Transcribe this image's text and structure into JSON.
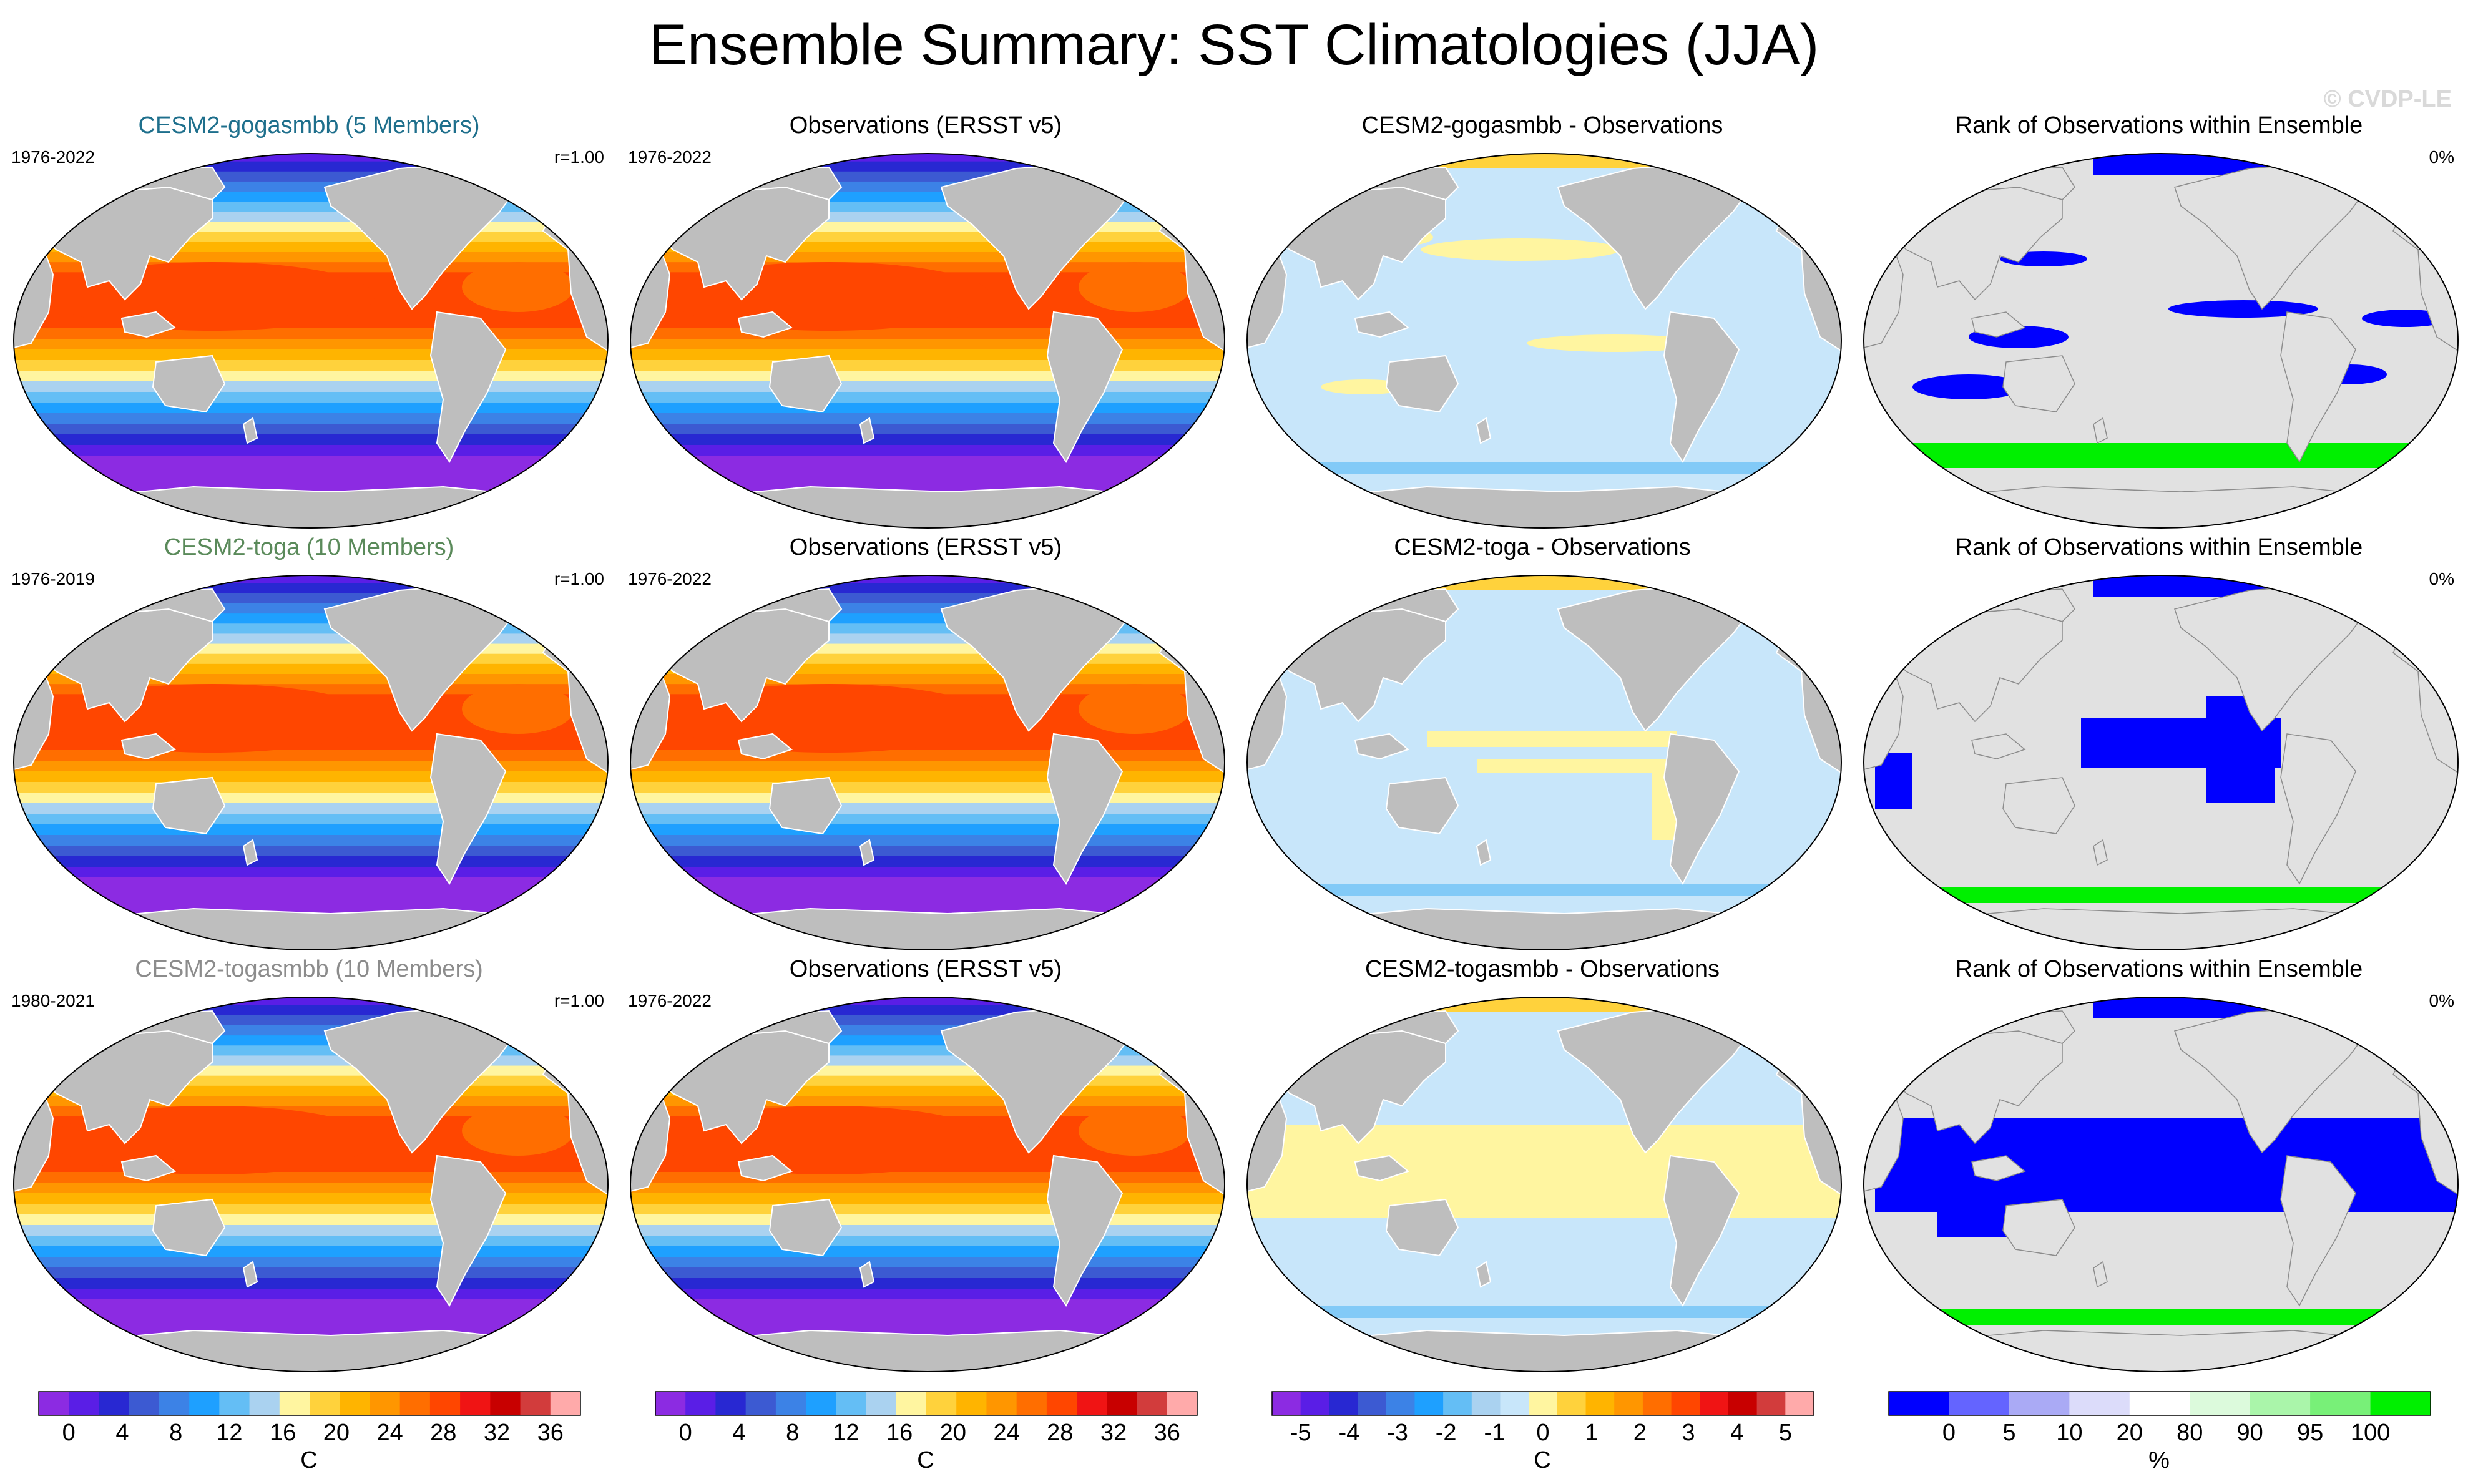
{
  "title": "Ensemble Summary: SST Climatologies (JJA)",
  "watermark": "© CVDP-LE",
  "rows": [
    {
      "model": {
        "title": "CESM2-gogasmbb (5 Members)",
        "title_color": "#1e6f8c",
        "years": "1976-2022",
        "corr": "r=1.00"
      },
      "obs": {
        "title": "Observations (ERSST v5)",
        "years": "1976-2022"
      },
      "diff": {
        "title": "CESM2-gogasmbb - Observations"
      },
      "rank": {
        "title": "Rank of Observations within Ensemble",
        "pct": "0%"
      }
    },
    {
      "model": {
        "title": "CESM2-toga (10 Members)",
        "title_color": "#5a8a5a",
        "years": "1976-2019",
        "corr": "r=1.00"
      },
      "obs": {
        "title": "Observations (ERSST v5)",
        "years": "1976-2022"
      },
      "diff": {
        "title": "CESM2-toga - Observations"
      },
      "rank": {
        "title": "Rank of Observations within Ensemble",
        "pct": "0%"
      }
    },
    {
      "model": {
        "title": "CESM2-togasmbb (10 Members)",
        "title_color": "#8c8c8c",
        "years": "1980-2021",
        "corr": "r=1.00"
      },
      "obs": {
        "title": "Observations (ERSST v5)",
        "years": "1976-2022"
      },
      "diff": {
        "title": "CESM2-togasmbb - Observations"
      },
      "rank": {
        "title": "Rank of Observations within Ensemble",
        "pct": "0%"
      }
    }
  ],
  "colorbars": {
    "sst": {
      "unit": "C",
      "labels": [
        "0",
        "4",
        "8",
        "12",
        "16",
        "20",
        "24",
        "28",
        "32",
        "36"
      ],
      "colors": [
        "#8c2be2",
        "#5a1ee6",
        "#2828d2",
        "#3c5ad2",
        "#3c82e6",
        "#1ea0ff",
        "#64bef5",
        "#aad2f0",
        "#fff5a0",
        "#ffd23c",
        "#ffb400",
        "#ff9600",
        "#ff6e00",
        "#ff4600",
        "#f01414",
        "#c80000",
        "#d23c3c",
        "#ffaaaa"
      ]
    },
    "diff": {
      "unit": "C",
      "labels": [
        "-5",
        "-4",
        "-3",
        "-2",
        "-1",
        "0",
        "1",
        "2",
        "3",
        "4",
        "5"
      ],
      "colors": [
        "#8c2be2",
        "#5a1ee6",
        "#2828d2",
        "#3c5ad2",
        "#3c82e6",
        "#1ea0ff",
        "#64bef5",
        "#aad2f0",
        "#c8e6fa",
        "#fff5a0",
        "#ffd23c",
        "#ffb400",
        "#ff9600",
        "#ff6e00",
        "#ff4600",
        "#f01414",
        "#c80000",
        "#d23c3c",
        "#ffaaaa"
      ]
    },
    "rank": {
      "unit": "%",
      "labels": [
        "0",
        "5",
        "10",
        "20",
        "80",
        "90",
        "95",
        "100"
      ],
      "colors": [
        "#0000ff",
        "#6464ff",
        "#aaaaf5",
        "#dcdcfa",
        "#ffffff",
        "#dcfadc",
        "#aaf5aa",
        "#78f078",
        "#00f000"
      ]
    }
  },
  "palette": {
    "land": "#bebebe",
    "ocean_land_rank": "#e1e1e1",
    "sst_bands": [
      "#8c2be2",
      "#5a1ee6",
      "#2828d2",
      "#3c5ad2",
      "#3c82e6",
      "#1ea0ff",
      "#64bef5",
      "#aad2f0",
      "#fff5a0",
      "#ffd23c",
      "#ffb400",
      "#ff9600",
      "#ff6e00",
      "#ff4600"
    ],
    "diff_neg": "#c8e6fa",
    "diff_pos": "#fff5a0",
    "diff_warm": "#ffd23c",
    "diff_cold": "#64bef5",
    "rank_low": "#0000ff",
    "rank_high": "#00f000"
  }
}
